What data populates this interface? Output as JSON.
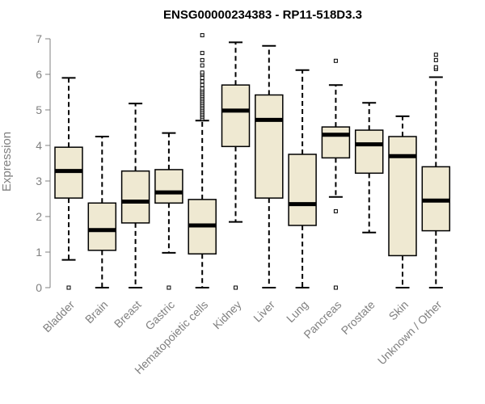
{
  "chart_data": {
    "type": "boxplot",
    "title": "ENSG00000234383 - RP11-518D3.3",
    "xlabel": "",
    "ylabel": "Expression",
    "ylim": [
      0,
      7
    ],
    "yticks": [
      0,
      1,
      2,
      3,
      4,
      5,
      6,
      7
    ],
    "categories": [
      "Bladder",
      "Brain",
      "Breast",
      "Gastric",
      "Hematopoietic cells",
      "Kidney",
      "Liver",
      "Lung",
      "Pancreas",
      "Prostate",
      "Skin",
      "Unknown / Other"
    ],
    "boxes": [
      {
        "min": 0.78,
        "q1": 2.52,
        "median": 3.28,
        "q3": 3.95,
        "max": 5.9,
        "outliers": [
          0.0
        ]
      },
      {
        "min": 0.0,
        "q1": 1.05,
        "median": 1.62,
        "q3": 2.38,
        "max": 4.25,
        "outliers": []
      },
      {
        "min": 0.0,
        "q1": 1.82,
        "median": 2.42,
        "q3": 3.28,
        "max": 5.18,
        "outliers": []
      },
      {
        "min": 0.98,
        "q1": 2.38,
        "median": 2.68,
        "q3": 3.32,
        "max": 4.35,
        "outliers": [
          0.0
        ]
      },
      {
        "min": 0.0,
        "q1": 0.95,
        "median": 1.75,
        "q3": 2.48,
        "max": 4.7,
        "outliers": [
          4.75,
          4.8,
          4.85,
          4.9,
          4.95,
          5.0,
          5.05,
          5.1,
          5.15,
          5.2,
          5.25,
          5.3,
          5.35,
          5.4,
          5.45,
          5.5,
          5.55,
          5.6,
          5.7,
          5.8,
          5.9,
          6.0,
          6.05,
          6.25,
          6.4,
          6.6,
          7.1
        ]
      },
      {
        "min": 1.85,
        "q1": 3.97,
        "median": 4.98,
        "q3": 5.7,
        "max": 6.9,
        "outliers": [
          0.0
        ]
      },
      {
        "min": 0.0,
        "q1": 2.52,
        "median": 4.72,
        "q3": 5.42,
        "max": 6.8,
        "outliers": []
      },
      {
        "min": 0.0,
        "q1": 1.75,
        "median": 2.35,
        "q3": 3.75,
        "max": 6.12,
        "outliers": []
      },
      {
        "min": 2.55,
        "q1": 3.65,
        "median": 4.3,
        "q3": 4.52,
        "max": 5.7,
        "outliers": [
          0.0,
          2.15,
          6.38
        ]
      },
      {
        "min": 1.55,
        "q1": 3.22,
        "median": 4.03,
        "q3": 4.43,
        "max": 5.2,
        "outliers": []
      },
      {
        "min": 0.0,
        "q1": 0.9,
        "median": 3.7,
        "q3": 4.25,
        "max": 4.82,
        "outliers": []
      },
      {
        "min": 0.0,
        "q1": 1.6,
        "median": 2.45,
        "q3": 3.4,
        "max": 5.92,
        "outliers": [
          6.15,
          6.2,
          6.4,
          6.55
        ]
      }
    ],
    "colors": {
      "box_fill": "#efe9d2",
      "stroke": "#000000",
      "axis": "#808080",
      "text": "#808080"
    },
    "grid": false,
    "legend": "none"
  }
}
